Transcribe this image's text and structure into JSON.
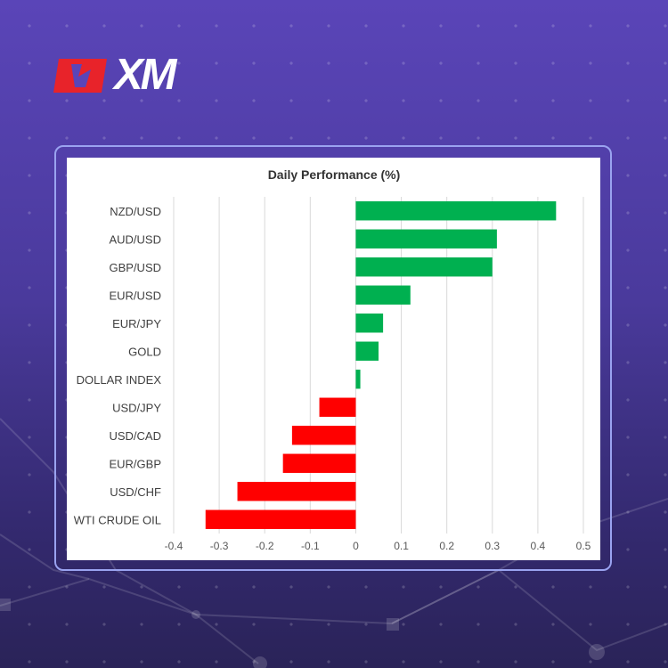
{
  "brand": {
    "logo_text": "XM"
  },
  "colors": {
    "positive": "#00b050",
    "negative": "#ff0000",
    "accent": "#e8232a"
  },
  "chart_data": {
    "type": "bar",
    "orientation": "horizontal",
    "title": "Daily Performance  (%)",
    "xlabel": "",
    "ylabel": "",
    "categories": [
      "NZD/USD",
      "AUD/USD",
      "GBP/USD",
      "EUR/USD",
      "EUR/JPY",
      "GOLD",
      "DOLLAR INDEX",
      "USD/JPY",
      "USD/CAD",
      "EUR/GBP",
      "USD/CHF",
      "WTI CRUDE OIL"
    ],
    "values": [
      0.44,
      0.31,
      0.3,
      0.12,
      0.06,
      0.05,
      0.01,
      -0.08,
      -0.14,
      -0.16,
      -0.26,
      -0.33
    ],
    "xlim": [
      -0.4,
      0.5
    ],
    "xticks": [
      "-0.4",
      "-0.3",
      "-0.2",
      "-0.1",
      "0",
      "0.1",
      "0.2",
      "0.3",
      "0.4",
      "0.5"
    ],
    "grid": "vertical",
    "legend": "none"
  }
}
